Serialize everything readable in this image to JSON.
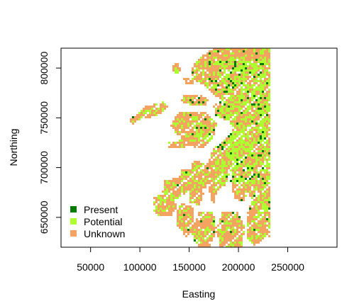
{
  "map": {
    "xlabel": "Easting",
    "ylabel": "Northing",
    "x_ticks": [
      {
        "value": 50000,
        "label": "50000"
      },
      {
        "value": 100000,
        "label": "100000"
      },
      {
        "value": 150000,
        "label": "150000"
      },
      {
        "value": 200000,
        "label": "200000"
      },
      {
        "value": 250000,
        "label": "250000"
      }
    ],
    "y_ticks": [
      {
        "value": 650000,
        "label": "650000"
      },
      {
        "value": 700000,
        "label": "700000"
      },
      {
        "value": 750000,
        "label": "750000"
      },
      {
        "value": 800000,
        "label": "800000"
      }
    ],
    "xlim": [
      20000,
      300000
    ],
    "ylim": [
      620000,
      820000
    ],
    "data_extent_east": 232000,
    "legend": {
      "placement": "bottom-left",
      "entries": [
        {
          "label": "Present",
          "color": "#007a00"
        },
        {
          "label": "Potential",
          "color": "#adff2f"
        },
        {
          "label": "Unknown",
          "color": "#f4a460"
        }
      ]
    },
    "colors": {
      "present": "#007a00",
      "potential": "#adff2f",
      "unknown": "#f4a460",
      "background": "#ffffff"
    }
  }
}
